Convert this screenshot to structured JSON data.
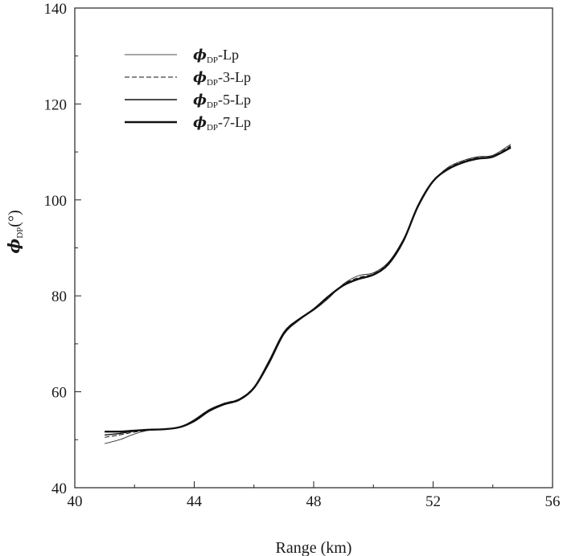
{
  "chart_data": {
    "type": "line",
    "xlabel": "Range (km)",
    "ylabel": {
      "symbol": "ϕ",
      "subscript": "DP",
      "unit": "(°)"
    },
    "xlim": [
      40,
      56
    ],
    "ylim": [
      40,
      140
    ],
    "xticks": [
      40,
      44,
      48,
      52,
      56
    ],
    "yticks": [
      40,
      60,
      80,
      100,
      120,
      140
    ],
    "grid": false,
    "legend_position": "top-left",
    "series": [
      {
        "name": {
          "symbol": "ϕ",
          "subscript": "DP",
          "suffix": "-Lp"
        },
        "style": "thin-solid",
        "x": [
          41.0,
          41.5,
          42.0,
          42.5,
          43.0,
          43.5,
          44.0,
          44.5,
          45.0,
          45.5,
          46.0,
          46.5,
          47.0,
          47.5,
          48.0,
          48.5,
          49.0,
          49.5,
          50.0,
          50.5,
          51.0,
          51.5,
          52.0,
          52.5,
          53.0,
          53.5,
          54.0,
          54.6
        ],
        "y": [
          49.2,
          50.0,
          51.2,
          52.0,
          52.2,
          52.6,
          54.2,
          56.3,
          57.6,
          58.5,
          61.0,
          66.5,
          72.5,
          75.2,
          77.0,
          79.5,
          82.5,
          84.2,
          84.8,
          87.0,
          91.8,
          98.5,
          103.8,
          106.8,
          108.2,
          109.0,
          109.3,
          111.6
        ]
      },
      {
        "name": {
          "symbol": "ϕ",
          "subscript": "DP",
          "suffix": "-3-Lp"
        },
        "style": "dashed",
        "x": [
          41.0,
          41.5,
          42.0,
          42.5,
          43.0,
          43.5,
          44.0,
          44.5,
          45.0,
          45.5,
          46.0,
          46.5,
          47.0,
          47.5,
          48.0,
          48.5,
          49.0,
          49.5,
          50.0,
          50.5,
          51.0,
          51.5,
          52.0,
          52.5,
          53.0,
          53.5,
          54.0,
          54.6
        ],
        "y": [
          50.5,
          51.0,
          51.6,
          52.0,
          52.2,
          52.6,
          54.1,
          56.2,
          57.6,
          58.5,
          61.0,
          66.3,
          72.4,
          75.2,
          77.1,
          79.7,
          82.4,
          83.8,
          84.6,
          86.8,
          91.6,
          98.6,
          103.8,
          106.6,
          108.0,
          108.8,
          109.1,
          111.3
        ]
      },
      {
        "name": {
          "symbol": "ϕ",
          "subscript": "DP",
          "suffix": "-5-Lp"
        },
        "style": "solid",
        "x": [
          41.0,
          41.5,
          42.0,
          42.5,
          43.0,
          43.5,
          44.0,
          44.5,
          45.0,
          45.5,
          46.0,
          46.5,
          47.0,
          47.5,
          48.0,
          48.5,
          49.0,
          49.5,
          50.0,
          50.5,
          51.0,
          51.5,
          52.0,
          52.5,
          53.0,
          53.5,
          54.0,
          54.6
        ],
        "y": [
          51.0,
          51.3,
          51.8,
          52.0,
          52.2,
          52.6,
          54.0,
          56.1,
          57.5,
          58.4,
          60.9,
          66.1,
          72.2,
          75.1,
          77.2,
          79.8,
          82.3,
          83.6,
          84.5,
          86.7,
          91.5,
          98.7,
          103.9,
          106.5,
          107.9,
          108.7,
          109.0,
          111.1
        ]
      },
      {
        "name": {
          "symbol": "ϕ",
          "subscript": "DP",
          "suffix": "-7-Lp"
        },
        "style": "thick-solid",
        "x": [
          41.0,
          41.5,
          42.0,
          42.5,
          43.0,
          43.5,
          44.0,
          44.5,
          45.0,
          45.5,
          46.0,
          46.5,
          47.0,
          47.5,
          48.0,
          48.5,
          49.0,
          49.5,
          50.0,
          50.5,
          51.0,
          51.5,
          52.0,
          52.5,
          53.0,
          53.5,
          54.0,
          54.6
        ],
        "y": [
          51.7,
          51.7,
          51.9,
          52.1,
          52.2,
          52.6,
          53.9,
          56.0,
          57.4,
          58.3,
          60.8,
          66.0,
          72.1,
          75.0,
          77.2,
          79.9,
          82.2,
          83.5,
          84.4,
          86.6,
          91.4,
          98.8,
          103.9,
          106.4,
          107.8,
          108.6,
          109.0,
          110.9
        ]
      }
    ]
  }
}
